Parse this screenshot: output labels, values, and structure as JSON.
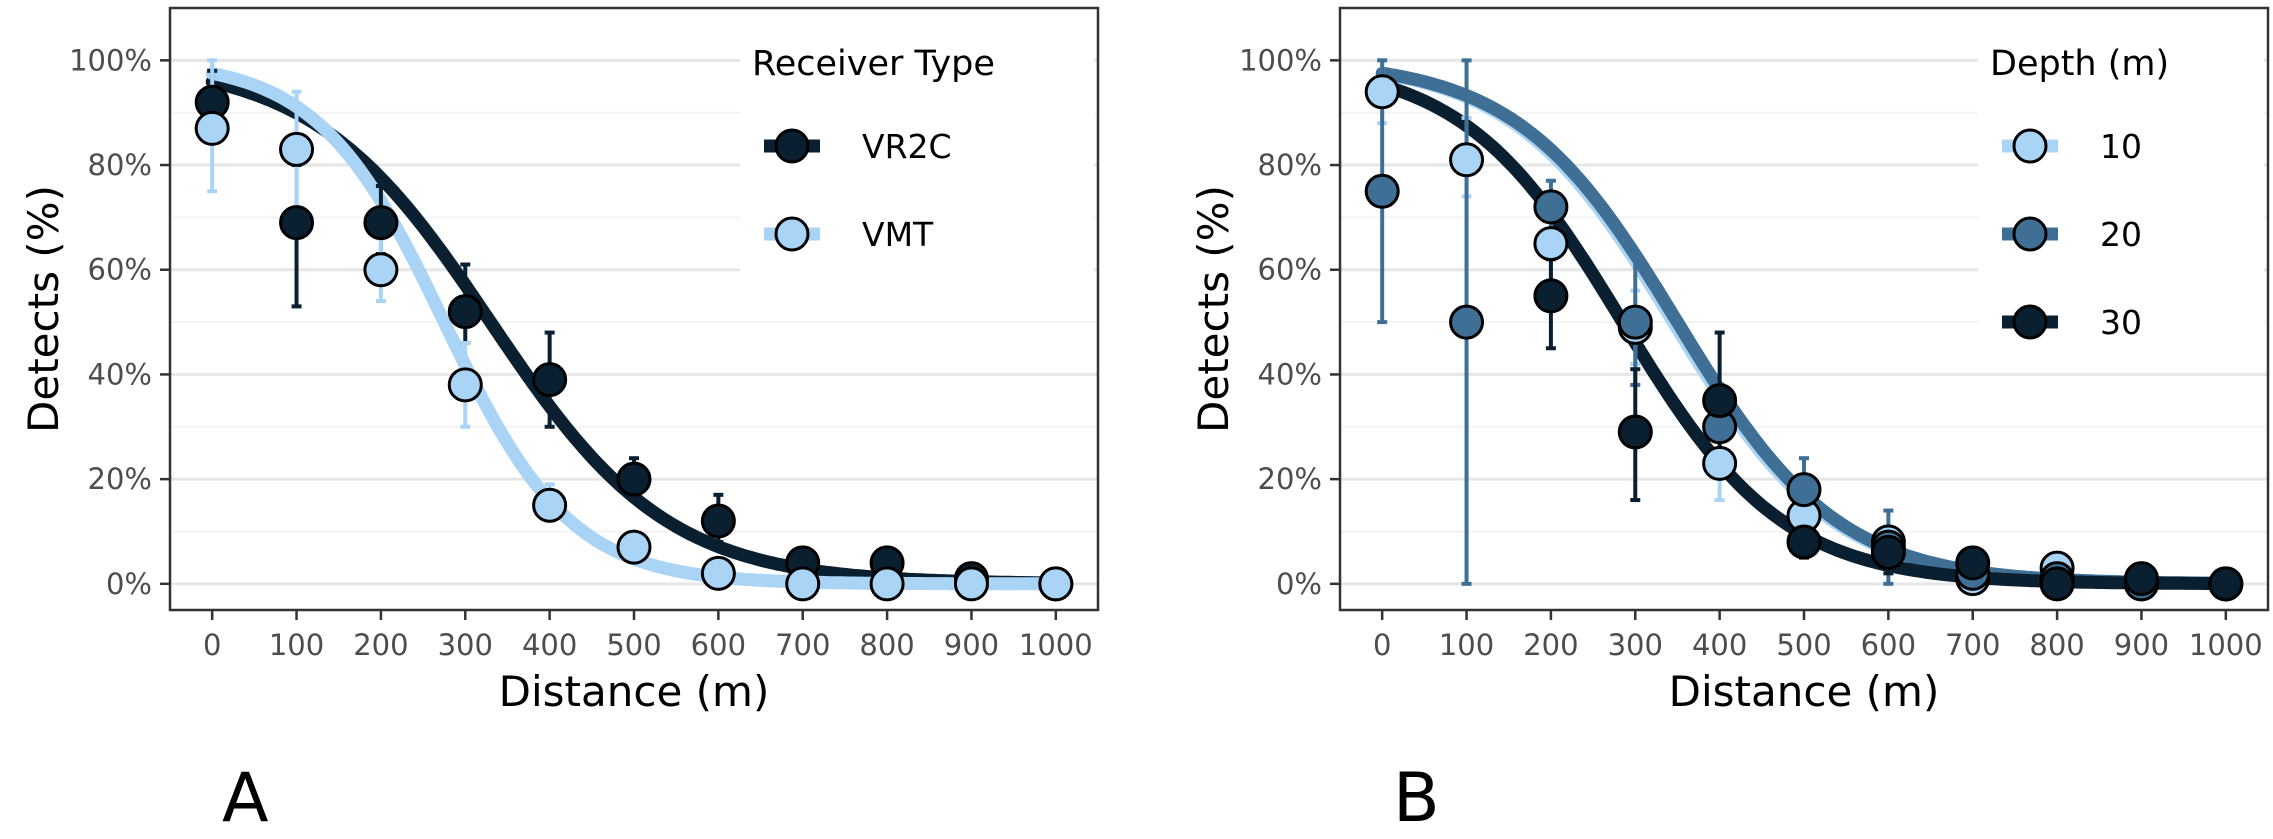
{
  "panels": [
    {
      "letter": "A"
    },
    {
      "letter": "B"
    }
  ],
  "chart_data": [
    {
      "type": "scatter",
      "panel": "A",
      "xlabel": "Distance (m)",
      "ylabel": "Detects (%)",
      "xlim": [
        -50,
        1050
      ],
      "ylim": [
        -0.05,
        1.1
      ],
      "xticks": [
        "0",
        "100",
        "200",
        "300",
        "400",
        "500",
        "600",
        "700",
        "800",
        "900",
        "1000"
      ],
      "yticks": [
        "0%",
        "20%",
        "40%",
        "60%",
        "80%",
        "100%"
      ],
      "grid": true,
      "legend_title": "Receiver Type",
      "legend_position": "top-right",
      "series": [
        {
          "name": "VR2C",
          "color": "#0a1f30",
          "points": [
            {
              "x": 0,
              "y": 0.92,
              "lo": 0.86,
              "hi": 0.98
            },
            {
              "x": 100,
              "y": 0.69,
              "lo": 0.53,
              "hi": 0.8
            },
            {
              "x": 200,
              "y": 0.69,
              "lo": 0.63,
              "hi": 0.76
            },
            {
              "x": 300,
              "y": 0.52,
              "lo": 0.46,
              "hi": 0.61
            },
            {
              "x": 400,
              "y": 0.39,
              "lo": 0.3,
              "hi": 0.48
            },
            {
              "x": 500,
              "y": 0.2,
              "lo": 0.16,
              "hi": 0.24
            },
            {
              "x": 600,
              "y": 0.12,
              "lo": 0.08,
              "hi": 0.17
            },
            {
              "x": 700,
              "y": 0.04,
              "lo": 0.02,
              "hi": 0.06
            },
            {
              "x": 800,
              "y": 0.04,
              "lo": 0.02,
              "hi": 0.06
            },
            {
              "x": 900,
              "y": 0.01,
              "lo": 0.0,
              "hi": 0.02
            },
            {
              "x": 1000,
              "y": 0.0,
              "lo": 0.0,
              "hi": 0.01
            }
          ],
          "curve": {
            "mid": 330,
            "scale": 105
          }
        },
        {
          "name": "VMT",
          "color": "#a9d4f5",
          "points": [
            {
              "x": 0,
              "y": 0.87,
              "lo": 0.75,
              "hi": 1.0
            },
            {
              "x": 100,
              "y": 0.83,
              "lo": 0.72,
              "hi": 0.94
            },
            {
              "x": 200,
              "y": 0.6,
              "lo": 0.54,
              "hi": 0.66
            },
            {
              "x": 300,
              "y": 0.38,
              "lo": 0.3,
              "hi": 0.46
            },
            {
              "x": 400,
              "y": 0.15,
              "lo": 0.12,
              "hi": 0.19
            },
            {
              "x": 500,
              "y": 0.07,
              "lo": 0.05,
              "hi": 0.09
            },
            {
              "x": 600,
              "y": 0.02,
              "lo": 0.01,
              "hi": 0.04
            },
            {
              "x": 700,
              "y": 0.0,
              "lo": 0.0,
              "hi": 0.01
            },
            {
              "x": 800,
              "y": 0.0,
              "lo": 0.0,
              "hi": 0.01
            },
            {
              "x": 900,
              "y": 0.0,
              "lo": 0.0,
              "hi": 0.01
            },
            {
              "x": 1000,
              "y": 0.0,
              "lo": 0.0,
              "hi": 0.01
            }
          ],
          "curve": {
            "mid": 275,
            "scale": 75
          }
        }
      ]
    },
    {
      "type": "scatter",
      "panel": "B",
      "xlabel": "Distance (m)",
      "ylabel": "Detects (%)",
      "xlim": [
        -50,
        1050
      ],
      "ylim": [
        -0.05,
        1.1
      ],
      "xticks": [
        "0",
        "100",
        "200",
        "300",
        "400",
        "500",
        "600",
        "700",
        "800",
        "900",
        "1000"
      ],
      "yticks": [
        "0%",
        "20%",
        "40%",
        "60%",
        "80%",
        "100%"
      ],
      "grid": true,
      "legend_title": "Depth (m)",
      "legend_position": "top-right",
      "series": [
        {
          "name": "10",
          "color": "#a9d4f5",
          "points": [
            {
              "x": 0,
              "y": 0.94,
              "lo": 0.88,
              "hi": 1.0
            },
            {
              "x": 100,
              "y": 0.81,
              "lo": 0.74,
              "hi": 0.89
            },
            {
              "x": 200,
              "y": 0.65,
              "lo": 0.58,
              "hi": 0.72
            },
            {
              "x": 300,
              "y": 0.49,
              "lo": 0.42,
              "hi": 0.56
            },
            {
              "x": 400,
              "y": 0.23,
              "lo": 0.16,
              "hi": 0.3
            },
            {
              "x": 500,
              "y": 0.13,
              "lo": 0.1,
              "hi": 0.17
            },
            {
              "x": 600,
              "y": 0.08,
              "lo": 0.05,
              "hi": 0.11
            },
            {
              "x": 700,
              "y": 0.01,
              "lo": 0.0,
              "hi": 0.03
            },
            {
              "x": 800,
              "y": 0.03,
              "lo": 0.01,
              "hi": 0.05
            },
            {
              "x": 900,
              "y": 0.0,
              "lo": 0.0,
              "hi": 0.01
            },
            {
              "x": 1000,
              "y": 0.0,
              "lo": 0.0,
              "hi": 0.01
            }
          ],
          "curve": {
            "mid": 345,
            "scale": 95
          }
        },
        {
          "name": "20",
          "color": "#3f6f95",
          "points": [
            {
              "x": 0,
              "y": 0.75,
              "lo": 0.5,
              "hi": 1.0
            },
            {
              "x": 100,
              "y": 0.5,
              "lo": 0.0,
              "hi": 1.0
            },
            {
              "x": 200,
              "y": 0.72,
              "lo": 0.66,
              "hi": 0.77
            },
            {
              "x": 300,
              "y": 0.5,
              "lo": 0.38,
              "hi": 0.63
            },
            {
              "x": 400,
              "y": 0.3,
              "lo": 0.22,
              "hi": 0.38
            },
            {
              "x": 500,
              "y": 0.18,
              "lo": 0.12,
              "hi": 0.24
            },
            {
              "x": 600,
              "y": 0.07,
              "lo": 0.0,
              "hi": 0.14
            },
            {
              "x": 700,
              "y": 0.02,
              "lo": 0.0,
              "hi": 0.05
            },
            {
              "x": 800,
              "y": 0.01,
              "lo": 0.0,
              "hi": 0.03
            },
            {
              "x": 900,
              "y": 0.0,
              "lo": 0.0,
              "hi": 0.01
            },
            {
              "x": 1000,
              "y": 0.0,
              "lo": 0.0,
              "hi": 0.01
            }
          ],
          "curve": {
            "mid": 350,
            "scale": 95
          }
        },
        {
          "name": "30",
          "color": "#0a1f30",
          "points": [
            {
              "x": 200,
              "y": 0.55,
              "lo": 0.45,
              "hi": 0.62
            },
            {
              "x": 300,
              "y": 0.29,
              "lo": 0.16,
              "hi": 0.41
            },
            {
              "x": 400,
              "y": 0.35,
              "lo": 0.22,
              "hi": 0.48
            },
            {
              "x": 500,
              "y": 0.08,
              "lo": 0.05,
              "hi": 0.12
            },
            {
              "x": 600,
              "y": 0.06,
              "lo": 0.02,
              "hi": 0.1
            },
            {
              "x": 700,
              "y": 0.04,
              "lo": 0.02,
              "hi": 0.06
            },
            {
              "x": 800,
              "y": 0.0,
              "lo": 0.0,
              "hi": 0.02
            },
            {
              "x": 900,
              "y": 0.01,
              "lo": 0.0,
              "hi": 0.02
            },
            {
              "x": 1000,
              "y": 0.0,
              "lo": 0.0,
              "hi": 0.01
            }
          ],
          "curve": {
            "mid": 285,
            "scale": 95
          }
        }
      ]
    }
  ]
}
